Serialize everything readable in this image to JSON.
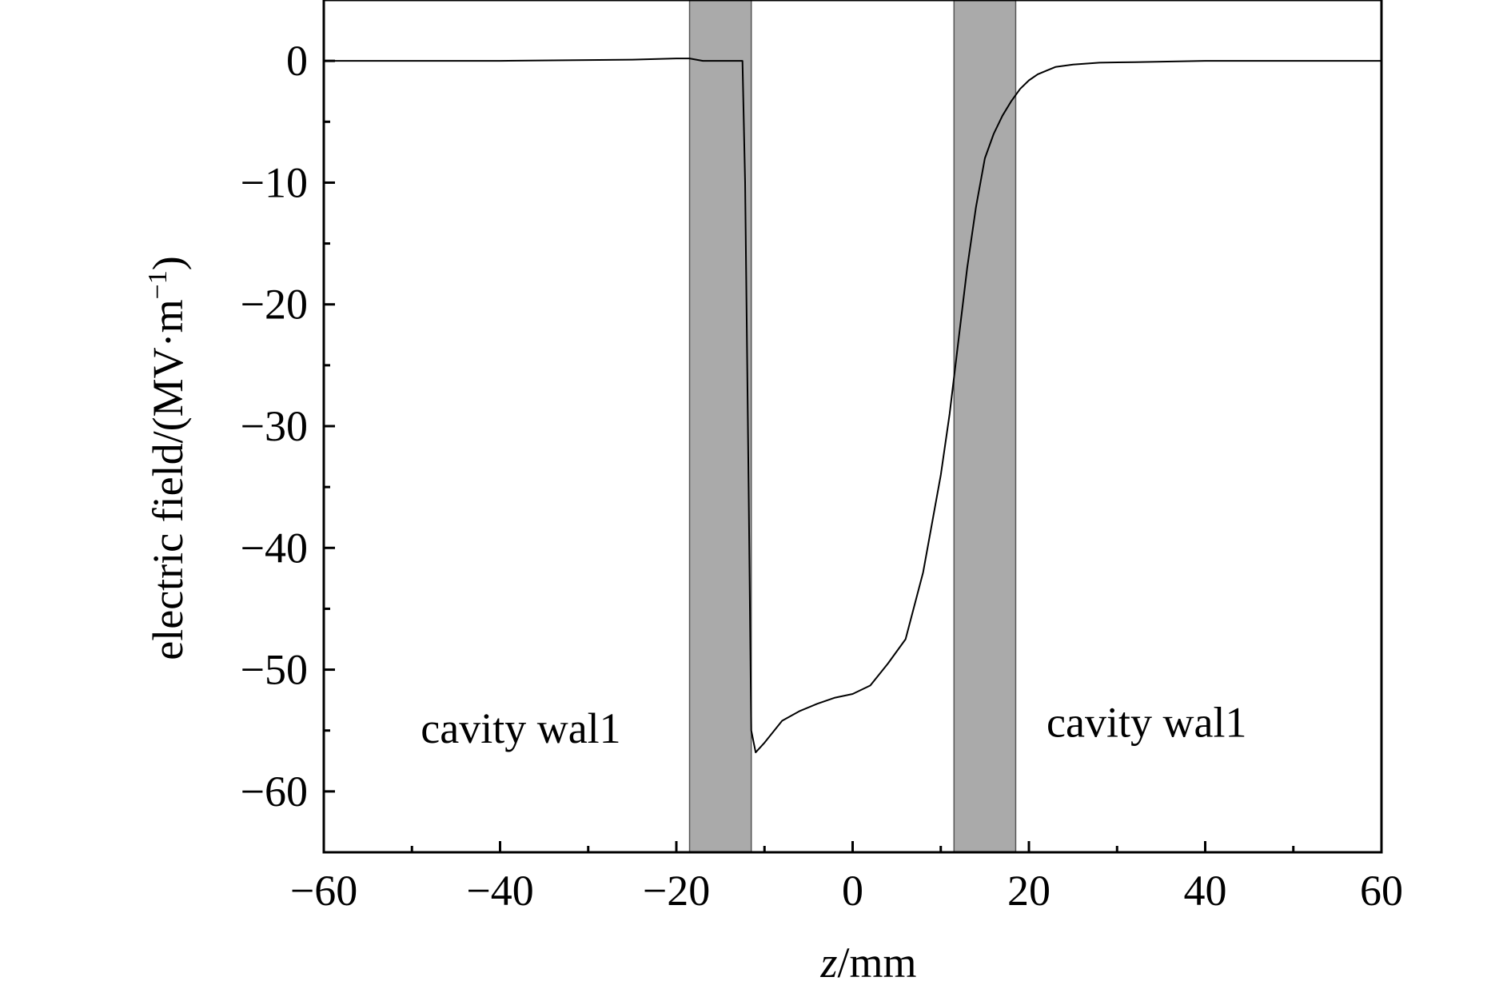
{
  "chart_data": {
    "type": "line",
    "xlabel": {
      "italic": "z",
      "rest": "/mm"
    },
    "ylabel": {
      "main": "electric field/(MV·m",
      "sup": "−1",
      "close": ")"
    },
    "xlim": [
      -60,
      60
    ],
    "ylim": [
      -65,
      5
    ],
    "xticks": [
      -60,
      -40,
      -20,
      0,
      20,
      40,
      60
    ],
    "xtick_labels": [
      "−60",
      "−40",
      "−20",
      "0",
      "20",
      "40",
      "60"
    ],
    "x_minor_ticks": [
      -50,
      -30,
      -10,
      10,
      30,
      50
    ],
    "yticks": [
      0,
      -10,
      -20,
      -30,
      -40,
      -50,
      -60
    ],
    "ytick_labels": [
      "0",
      "−10",
      "−20",
      "−30",
      "−40",
      "−50",
      "−60"
    ],
    "y_minor_ticks": [
      -5,
      -15,
      -25,
      -35,
      -45,
      -55
    ],
    "grid": false,
    "bands": [
      {
        "x0": -18.5,
        "x1": -11.5,
        "label": "cavity wal1",
        "label_pos": {
          "x": -49,
          "y": -56
        }
      },
      {
        "x0": 11.5,
        "x1": 18.5,
        "label": "cavity wal1",
        "label_pos": {
          "x": 22,
          "y": -55.5
        }
      }
    ],
    "series": [
      {
        "color": "#000000",
        "x": [
          -60,
          -40,
          -25,
          -20,
          -18.5,
          -17,
          -14,
          -12.5,
          -12.2,
          -11.8,
          -11.5,
          -11,
          -10,
          -8,
          -6,
          -4,
          -2,
          0,
          2,
          4,
          6,
          8,
          10,
          11,
          12,
          13,
          14,
          15,
          16,
          17,
          18,
          19,
          20,
          21,
          22,
          23,
          25,
          28,
          32,
          40,
          50,
          60
        ],
        "y": [
          0,
          0,
          0.1,
          0.2,
          0.2,
          0,
          0,
          0,
          -10,
          -35,
          -55,
          -56.8,
          -56,
          -54.2,
          -53.4,
          -52.8,
          -52.3,
          -52.0,
          -51.3,
          -49.5,
          -47.5,
          -42,
          -34,
          -29,
          -23,
          -17,
          -12,
          -8,
          -6,
          -4.5,
          -3.3,
          -2.3,
          -1.6,
          -1.1,
          -0.8,
          -0.5,
          -0.3,
          -0.15,
          -0.1,
          0,
          0,
          0
        ]
      }
    ]
  }
}
